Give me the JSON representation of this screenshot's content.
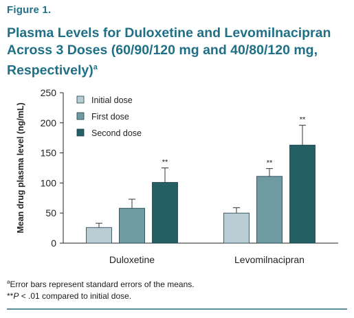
{
  "figure_label": "Figure 1.",
  "title_text": "Plasma Levels for Duloxetine and Levomilnacipran Across 3 Doses (60/90/120 mg and 40/80/120 mg, Respectively)",
  "title_sup": "a",
  "footnote_a_sup": "a",
  "footnote_a_text": "Error bars represent standard errors of the means.",
  "footnote_b_stars": "**",
  "footnote_b_p": "P",
  "footnote_b_text": " < .01 compared to initial dose.",
  "chart_data": {
    "type": "bar",
    "categories": [
      "Duloxetine",
      "Levomilnacipran"
    ],
    "series": [
      {
        "name": "Initial dose",
        "color": "#b9ccd3",
        "values": [
          26,
          50
        ],
        "errors": [
          7,
          9
        ],
        "annotations": [
          "",
          ""
        ]
      },
      {
        "name": "First dose",
        "color": "#6f9aa2",
        "values": [
          58,
          111
        ],
        "errors": [
          15,
          13
        ],
        "annotations": [
          "",
          "**"
        ]
      },
      {
        "name": "Second dose",
        "color": "#245f63",
        "values": [
          101,
          163
        ],
        "errors": [
          24,
          33
        ],
        "annotations": [
          "**",
          "**"
        ]
      }
    ],
    "ylabel": "Mean drug plasma level (ng/mL)",
    "ylim": [
      0,
      250
    ],
    "yticks": [
      0,
      50,
      100,
      150,
      200,
      250
    ],
    "legend_position": "top-left",
    "grid": false
  }
}
